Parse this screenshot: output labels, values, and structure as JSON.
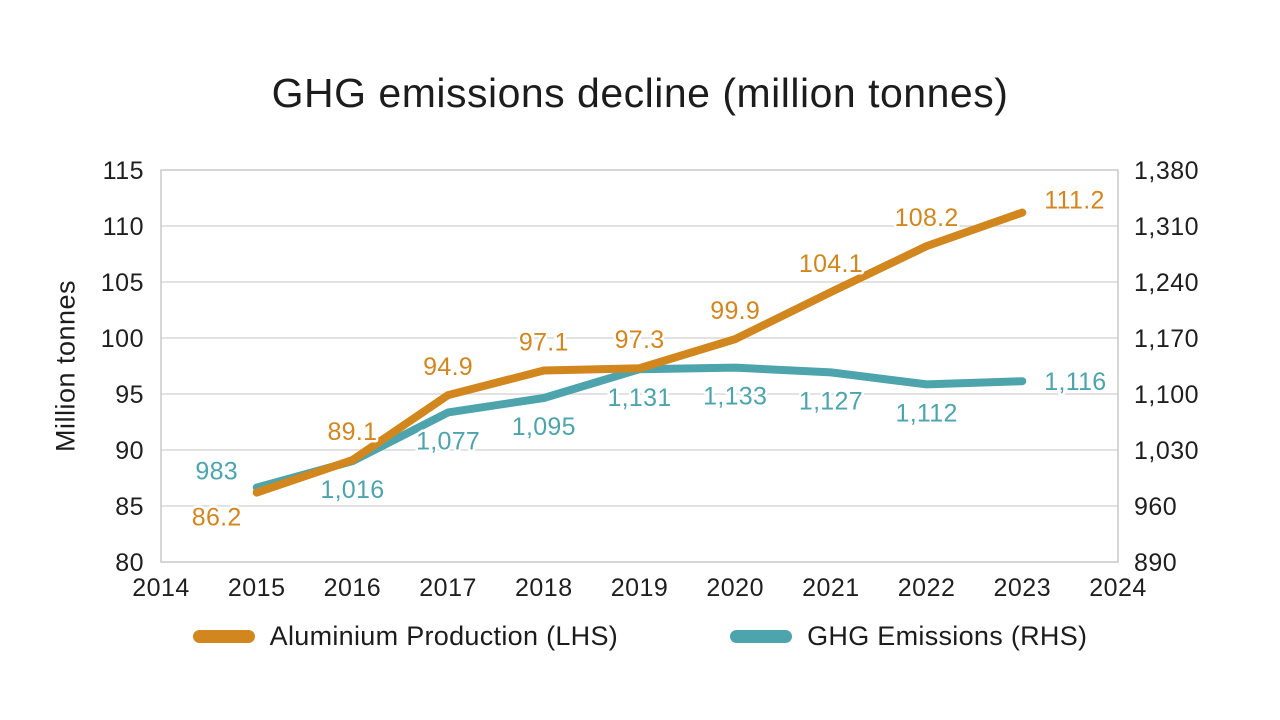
{
  "title": "GHG emissions decline (million tonnes)",
  "colors": {
    "orange": "#D2861E",
    "teal": "#4DA4AC",
    "grid": "#D9D9D9",
    "border": "#C4C4C4",
    "text": "#1F1F1F",
    "background": "#FFFFFF"
  },
  "chart_data": {
    "type": "line",
    "title": "GHG emissions decline (million tonnes)",
    "grid": true,
    "legend_position": "bottom",
    "x": [
      2015,
      2016,
      2017,
      2018,
      2019,
      2020,
      2021,
      2022,
      2023
    ],
    "x_axis": {
      "range": [
        2014,
        2024
      ],
      "ticks": [
        2014,
        2015,
        2016,
        2017,
        2018,
        2019,
        2020,
        2021,
        2022,
        2023,
        2024
      ]
    },
    "left_axis": {
      "label": "Million tonnes",
      "range": [
        80,
        115
      ],
      "step": 5,
      "ticks": [
        80,
        85,
        90,
        95,
        100,
        105,
        110,
        115
      ]
    },
    "right_axis": {
      "label": "",
      "range": [
        890,
        1380
      ],
      "step": 70,
      "ticks": [
        890,
        960,
        1030,
        1100,
        1170,
        1240,
        1310,
        1380
      ]
    },
    "series": [
      {
        "name": "Aluminium Production (LHS)",
        "short": "aluminium-production",
        "axis": "left",
        "color": "#D2861E",
        "values": [
          86.2,
          89.1,
          94.9,
          97.1,
          97.3,
          99.9,
          104.1,
          108.2,
          111.2
        ],
        "labels": [
          "86.2",
          "89.1",
          "94.9",
          "97.1",
          "97.3",
          "99.9",
          "104.1",
          "108.2",
          "111.2"
        ]
      },
      {
        "name": "GHG Emissions (RHS)",
        "short": "ghg-emissions",
        "axis": "right",
        "color": "#4DA4AC",
        "values": [
          983,
          1016,
          1077,
          1095,
          1131,
          1133,
          1127,
          1112,
          1116
        ],
        "labels": [
          "983",
          "1,016",
          "1,077",
          "1,095",
          "1,131",
          "1,133",
          "1,127",
          "1,112",
          "1,116"
        ]
      }
    ]
  }
}
